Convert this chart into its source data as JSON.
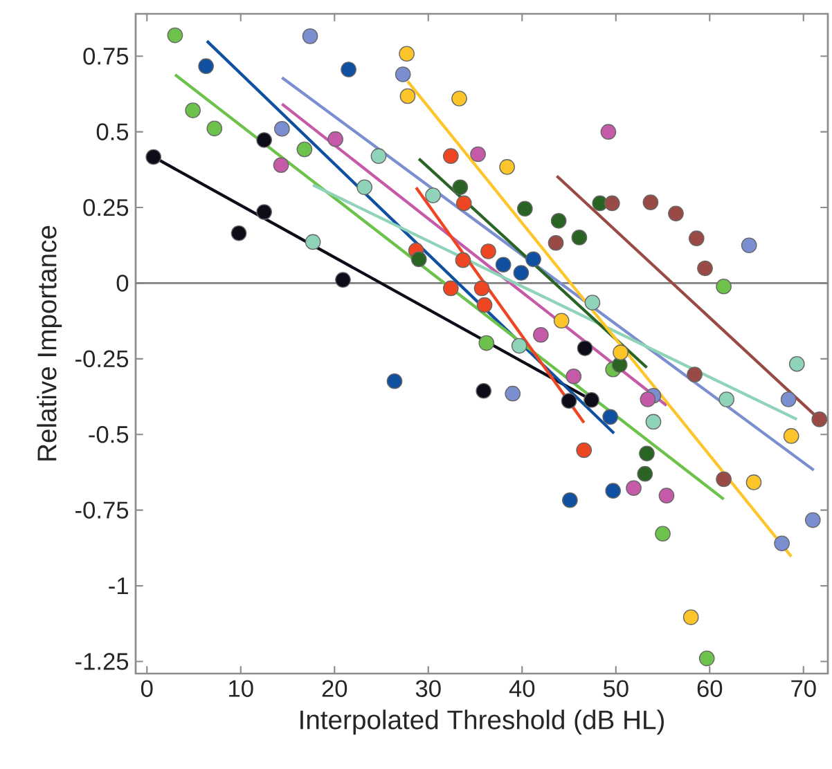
{
  "chart_data": {
    "type": "scatter",
    "xlabel": "Interpolated Threshold (dB HL)",
    "ylabel": "Relative Importance",
    "xlim": [
      -1.2,
      72.6
    ],
    "ylim": [
      -1.29,
      0.89
    ],
    "xticks": [
      0,
      10,
      20,
      30,
      40,
      50,
      60,
      70
    ],
    "yticks": [
      -1.25,
      -1,
      -0.75,
      -0.5,
      -0.25,
      0,
      0.25,
      0.5,
      0.75
    ],
    "grid": false,
    "marker": "circle",
    "ref_lines": [
      {
        "axis": "y",
        "value": 0,
        "color": "#808080"
      }
    ],
    "series": [
      {
        "color": "#0d0d1a",
        "x": [
          0.7,
          12.5,
          12.5,
          9.8,
          20.9,
          35.9,
          45.0,
          47.4,
          46.7
        ],
        "values": [
          0.417,
          0.473,
          0.235,
          0.165,
          0.011,
          -0.356,
          -0.389,
          -0.386,
          -0.215
        ]
      },
      {
        "color": "#1050a0",
        "x": [
          6.3,
          21.5,
          26.4,
          38.0,
          39.9,
          41.2,
          49.4,
          45.1,
          49.7
        ],
        "values": [
          0.717,
          0.706,
          -0.324,
          0.061,
          0.034,
          0.079,
          -0.442,
          -0.717,
          -0.686
        ]
      },
      {
        "color": "#6cc24a",
        "x": [
          3.0,
          4.9,
          7.2,
          16.8,
          36.2,
          49.7,
          55.0,
          59.7,
          61.5
        ],
        "values": [
          0.819,
          0.571,
          0.511,
          0.442,
          -0.198,
          -0.285,
          -0.828,
          -1.24,
          -0.011
        ]
      },
      {
        "color": "#7b8ed0",
        "x": [
          17.4,
          27.3,
          14.4,
          39.0,
          54.0,
          68.4,
          67.7,
          71.0,
          64.2
        ],
        "values": [
          0.816,
          0.69,
          0.51,
          -0.365,
          -0.372,
          -0.384,
          -0.86,
          -0.783,
          0.125
        ]
      },
      {
        "color": "#c55aa8",
        "x": [
          14.3,
          20.1,
          35.3,
          49.2,
          42.0,
          45.5,
          53.4,
          51.9,
          55.4
        ],
        "values": [
          0.39,
          0.476,
          0.426,
          0.5,
          -0.171,
          -0.308,
          -0.384,
          -0.677,
          -0.702
        ]
      },
      {
        "color": "#8fd3b8",
        "x": [
          17.7,
          24.7,
          23.2,
          30.5,
          47.5,
          39.7,
          54.0,
          61.8,
          69.3
        ],
        "values": [
          0.136,
          0.42,
          0.317,
          0.29,
          -0.064,
          -0.207,
          -0.458,
          -0.384,
          -0.267
        ]
      },
      {
        "color": "#ee4522",
        "x": [
          32.4,
          33.8,
          28.7,
          33.7,
          36.4,
          32.4,
          35.7,
          36.0,
          46.6
        ],
        "values": [
          0.42,
          0.264,
          0.108,
          0.076,
          0.105,
          -0.017,
          -0.017,
          -0.072,
          -0.552
        ]
      },
      {
        "color": "#2a6425",
        "x": [
          29.0,
          33.4,
          40.3,
          43.9,
          46.1,
          48.3,
          50.4,
          53.3,
          53.1
        ],
        "values": [
          0.079,
          0.317,
          0.246,
          0.206,
          0.151,
          0.264,
          -0.27,
          -0.563,
          -0.63
        ]
      },
      {
        "color": "#fec52b",
        "x": [
          27.7,
          27.8,
          33.3,
          38.4,
          44.2,
          50.5,
          68.7,
          64.7,
          58.0
        ],
        "values": [
          0.758,
          0.618,
          0.61,
          0.384,
          -0.124,
          -0.229,
          -0.505,
          -0.658,
          -1.104
        ]
      },
      {
        "color": "#9a4a45",
        "x": [
          49.6,
          53.7,
          56.4,
          58.6,
          59.5,
          43.6,
          58.4,
          61.5,
          71.7
        ],
        "values": [
          0.264,
          0.267,
          0.23,
          0.148,
          0.049,
          0.133,
          -0.302,
          -0.648,
          -0.45
        ]
      },
      {
        "type": "line",
        "marker": "none",
        "color": "#0d0d1a",
        "x": [
          0.7,
          47.4
        ],
        "values": [
          0.417,
          -0.386
        ]
      },
      {
        "type": "line",
        "marker": "none",
        "color": "#1050a0",
        "x": [
          6.4,
          49.8
        ],
        "values": [
          0.8,
          -0.496
        ]
      },
      {
        "type": "line",
        "marker": "none",
        "color": "#6cc24a",
        "x": [
          3.0,
          61.5
        ],
        "values": [
          0.689,
          -0.714
        ]
      },
      {
        "type": "line",
        "marker": "none",
        "color": "#7b8ed0",
        "x": [
          14.4,
          71.1
        ],
        "values": [
          0.679,
          -0.618
        ]
      },
      {
        "type": "line",
        "marker": "none",
        "color": "#c55aa8",
        "x": [
          14.4,
          55.4
        ],
        "values": [
          0.592,
          -0.404
        ]
      },
      {
        "type": "line",
        "marker": "none",
        "color": "#8fd3b8",
        "x": [
          17.7,
          69.3
        ],
        "values": [
          0.324,
          -0.45
        ]
      },
      {
        "type": "line",
        "marker": "none",
        "color": "#ee4522",
        "x": [
          28.7,
          46.6
        ],
        "values": [
          0.316,
          -0.461
        ]
      },
      {
        "type": "line",
        "marker": "none",
        "color": "#2a6425",
        "x": [
          29.0,
          53.3
        ],
        "values": [
          0.411,
          -0.279
        ]
      },
      {
        "type": "line",
        "marker": "none",
        "color": "#fec52b",
        "x": [
          27.8,
          68.7
        ],
        "values": [
          0.667,
          -0.903
        ]
      },
      {
        "type": "line",
        "color": "#9a4a45",
        "x": [
          43.7,
          71.7
        ],
        "values": [
          0.354,
          -0.45
        ]
      }
    ]
  }
}
